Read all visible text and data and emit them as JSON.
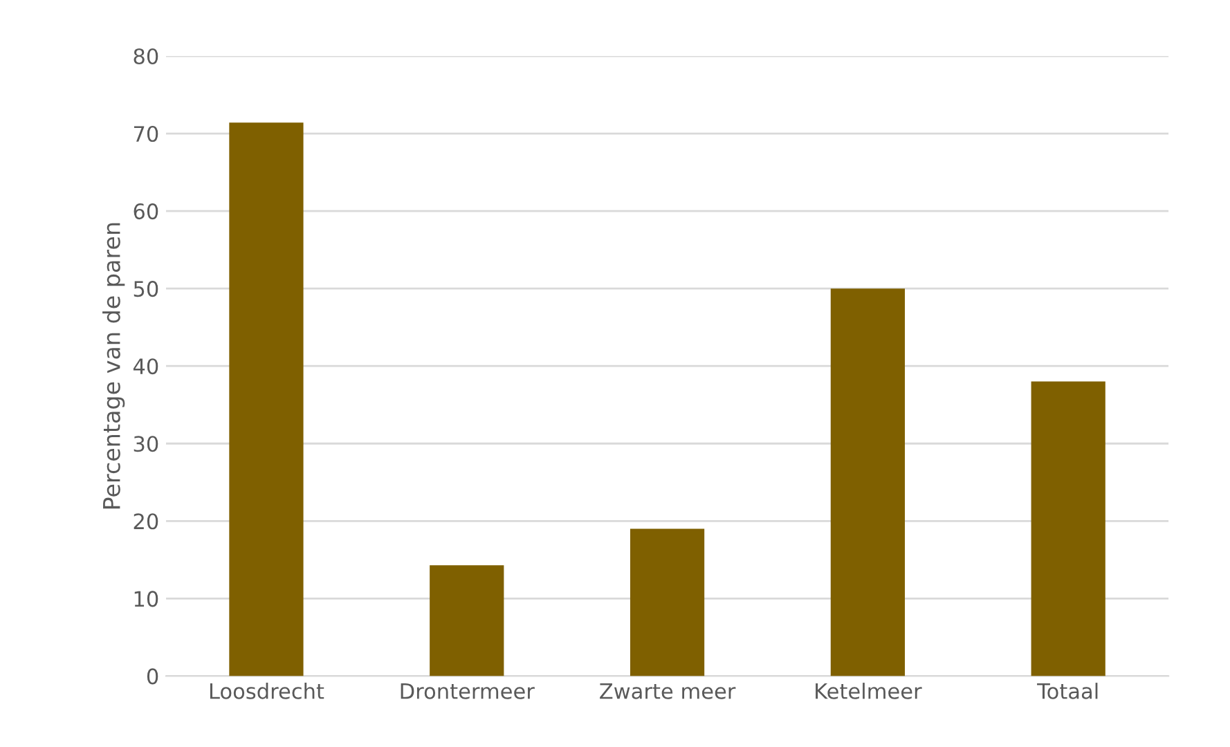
{
  "chart_data": {
    "type": "bar",
    "ylabel": "Percentage van de paren",
    "categories": [
      "Loosdrecht",
      "Drontermeer",
      "Zwarte meer",
      "Ketelmeer",
      "Totaal"
    ],
    "values": [
      71.4,
      14.3,
      19,
      50,
      38
    ],
    "color": "#7f6000",
    "ylim": [
      0,
      80
    ],
    "yticks": [
      0,
      10,
      20,
      30,
      40,
      50,
      60,
      70,
      80
    ],
    "grid": "y",
    "legend": false
  }
}
